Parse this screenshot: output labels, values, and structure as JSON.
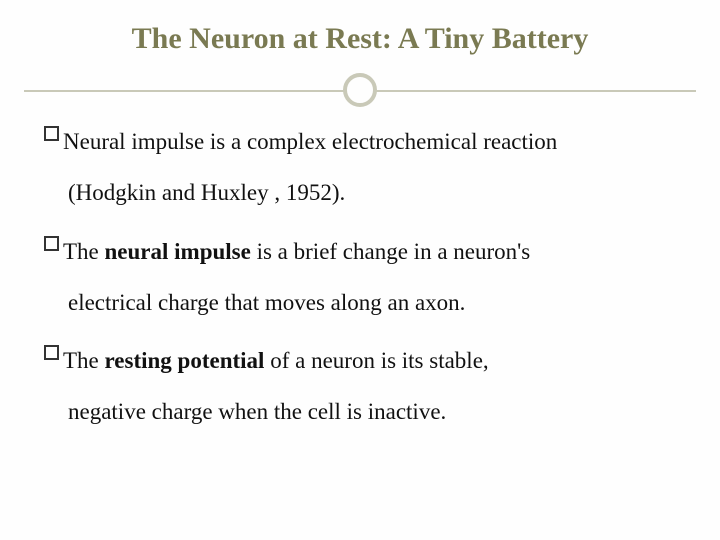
{
  "colors": {
    "title_color": "#7a7a52",
    "divider_color": "#c9c9b8",
    "text_color": "#111111",
    "background": "#fefefe",
    "bullet_border": "#333333"
  },
  "typography": {
    "title_fontsize": 30,
    "body_fontsize": 23,
    "body_lineheight": 1.95,
    "font_family": "Georgia, serif"
  },
  "title": "The Neuron at Rest: A Tiny Battery",
  "bullets": [
    {
      "line1_pre": "Neural impulse is a complex electrochemical reaction",
      "line2": "(Hodgkin and Huxley , 1952)."
    },
    {
      "line1_pre": "The ",
      "line1_bold": "neural impulse",
      "line1_post": " is a brief change in a neuron's",
      "line2": "electrical charge that moves along an axon."
    },
    {
      "line1_pre": "The ",
      "line1_bold": "resting potential",
      "line1_post": " of a neuron is its stable,",
      "line2": "negative charge when the cell is inactive."
    }
  ]
}
